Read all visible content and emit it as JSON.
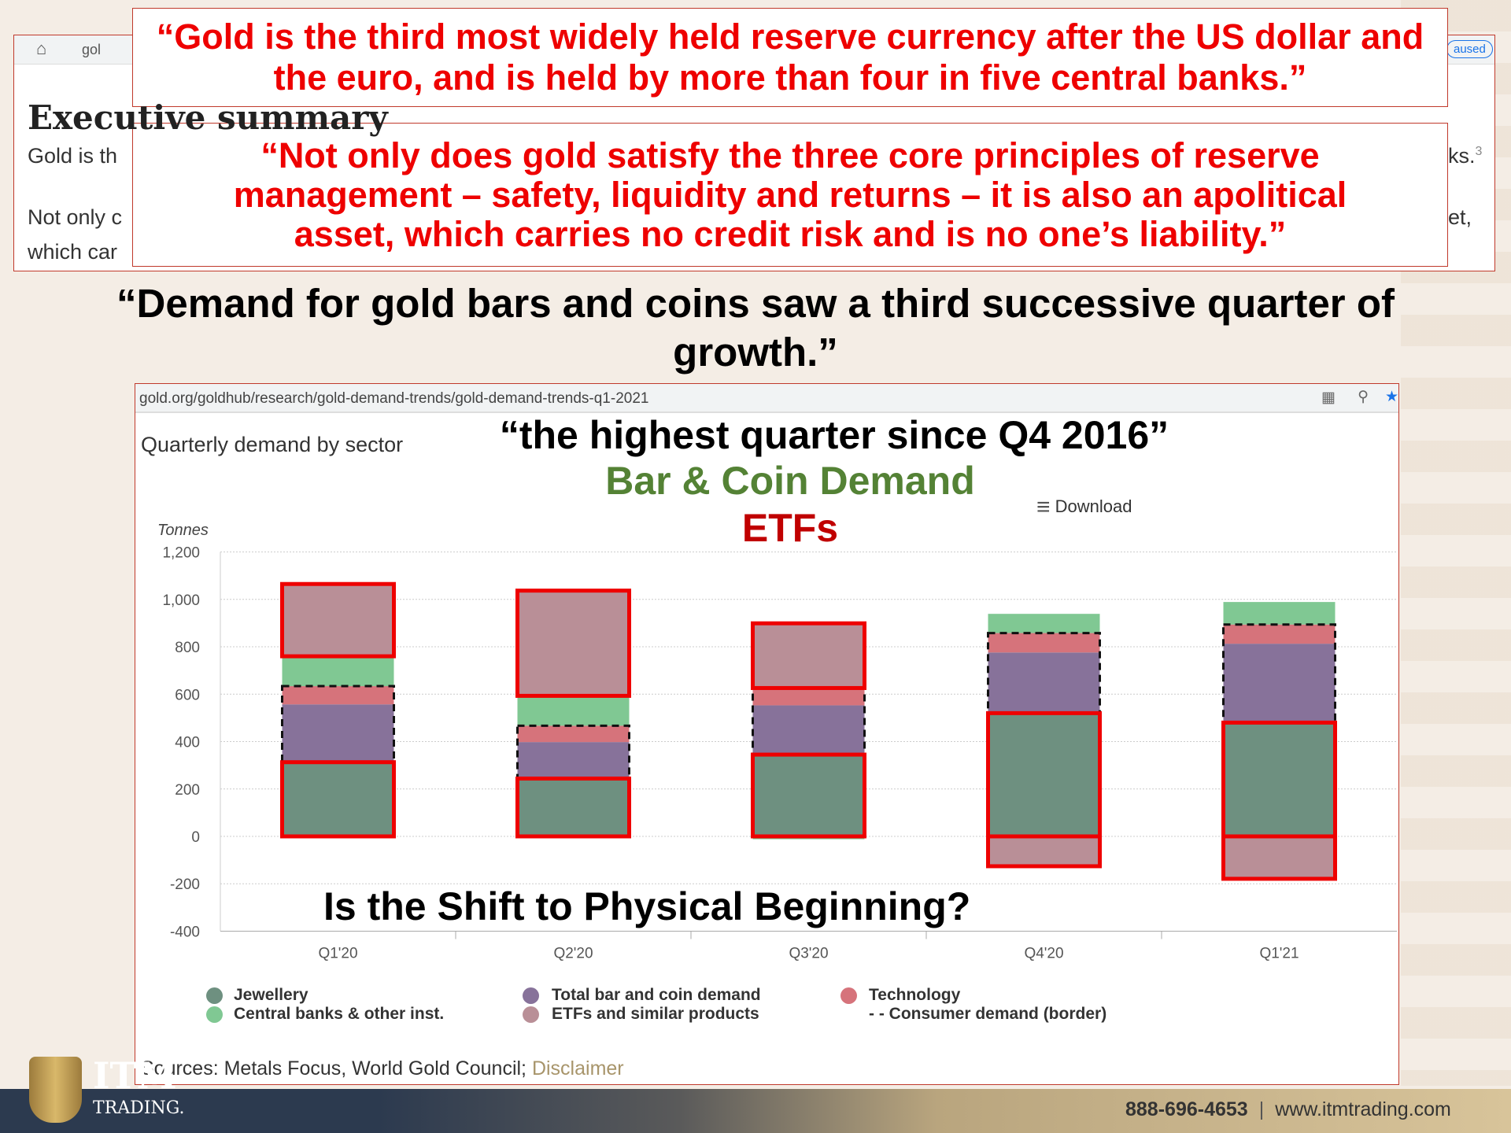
{
  "browser_top": {
    "url_fragment": "gol",
    "heading": "Executive summary",
    "line1_start": "Gold is th",
    "line1_end": "ks.",
    "footnote": "3",
    "line2_start": "Not only c",
    "line2_end": "et,",
    "line3_start": "which car",
    "pill": "aused"
  },
  "quotes": {
    "q1": "“Gold is the third most widely held reserve currency after the US dollar and the euro, and is held by more than four in five central banks.”",
    "q2": "“Not only does gold satisfy the three core principles of reserve management – safety, liquidity and returns – it is also an apolitical asset, which carries no credit risk and is no one’s liability.”",
    "q3": "“Demand for gold bars and coins saw a third successive quarter of growth.”",
    "q4": "“the highest quarter since Q4 2016”"
  },
  "browser_chart": {
    "url": "gold.org/goldhub/research/gold-demand-trends/gold-demand-trends-q1-2021",
    "download": "Download",
    "sources": "Sources: Metals Focus, World Gold Council; ",
    "disclaimer": "Disclaimer"
  },
  "annotations": {
    "bar_coin": "Bar & Coin Demand",
    "etfs": "ETFs",
    "question": "Is the Shift to Physical Beginning?"
  },
  "colors": {
    "jewellery": "#6e9080",
    "central_banks": "#80c893",
    "bar_coin": "#87729a",
    "etf": "#b98f97",
    "technology": "#d6737b",
    "annot_red": "#ee0000",
    "green_text": "#548235",
    "dark_red": "#c00000"
  },
  "chart_data": {
    "type": "bar",
    "stacked": true,
    "title": "Quarterly demand by sector",
    "ylabel": "Tonnes",
    "ylim": [
      -400,
      1200
    ],
    "yticks": [
      "1,200",
      "1,000",
      "800",
      "600",
      "400",
      "200",
      "0",
      "-200",
      "-400"
    ],
    "ytick_values": [
      1200,
      1000,
      800,
      600,
      400,
      200,
      0,
      -200,
      -400
    ],
    "categories": [
      "Q1'20",
      "Q2'20",
      "Q3'20",
      "Q4'20",
      "Q1'21"
    ],
    "series": [
      {
        "name": "Jewellery",
        "key": "jewellery",
        "values": [
          313,
          244,
          345,
          520,
          480
        ]
      },
      {
        "name": "Total bar and coin demand",
        "key": "bar_coin",
        "values": [
          244,
          154,
          208,
          256,
          333
        ]
      },
      {
        "name": "Technology",
        "key": "technology",
        "values": [
          77,
          69,
          73,
          82,
          81
        ]
      },
      {
        "name": "Central banks & other inst.",
        "key": "central_banks",
        "values": [
          126,
          126,
          -12,
          81,
          95
        ]
      },
      {
        "name": "ETFs and similar products",
        "key": "etf",
        "values": [
          305,
          444,
          273,
          -126,
          -179
        ]
      }
    ],
    "legend": [
      "Jewellery",
      "Central banks & other inst.",
      "Total bar and coin demand",
      "ETFs and similar products",
      "Technology",
      "- - Consumer demand (border)"
    ],
    "legend_position": "bottom"
  },
  "footer": {
    "brand": "ITM",
    "brand_sub": "TRADING.",
    "phone": "888-696-4653",
    "website": "www.itmtrading.com"
  }
}
